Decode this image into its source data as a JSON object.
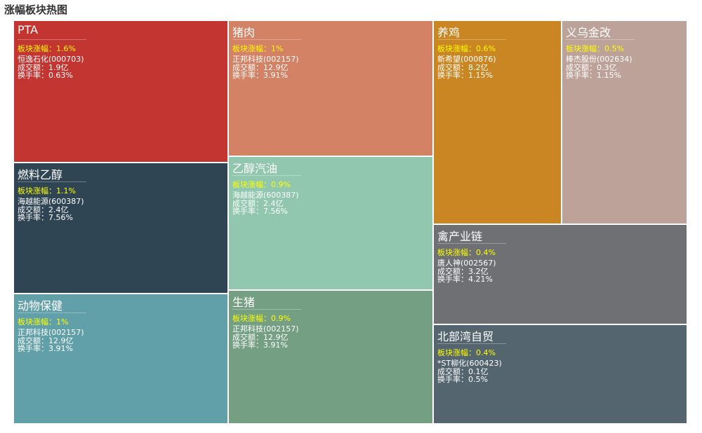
{
  "page_title": "涨幅板块热图",
  "chart_data": {
    "type": "treemap",
    "title": "涨幅板块热图",
    "labels": {
      "change_prefix": "板块涨幅：",
      "amount_prefix": "成交额：",
      "turnover_prefix": "换手率："
    },
    "nodes": [
      {
        "name": "PTA",
        "change": "1.6%",
        "stock": "恒逸石化(000703)",
        "amount": "1.9亿",
        "turnover": "0.63%",
        "color": "#c23531"
      },
      {
        "name": "燃料乙醇",
        "change": "1.1%",
        "stock": "海越能源(600387)",
        "amount": "2.4亿",
        "turnover": "7.56%",
        "color": "#2f4554"
      },
      {
        "name": "动物保健",
        "change": "1%",
        "stock": "正邦科技(002157)",
        "amount": "12.9亿",
        "turnover": "3.91%",
        "color": "#61a0a8"
      },
      {
        "name": "猪肉",
        "change": "1%",
        "stock": "正邦科技(002157)",
        "amount": "12.9亿",
        "turnover": "3.91%",
        "color": "#d48265"
      },
      {
        "name": "乙醇汽油",
        "change": "0.9%",
        "stock": "海越能源(600387)",
        "amount": "2.4亿",
        "turnover": "7.56%",
        "color": "#91c7ae"
      },
      {
        "name": "生猪",
        "change": "0.9%",
        "stock": "正邦科技(002157)",
        "amount": "12.9亿",
        "turnover": "3.91%",
        "color": "#749f83"
      },
      {
        "name": "养鸡",
        "change": "0.6%",
        "stock": "新希望(000876)",
        "amount": "8.2亿",
        "turnover": "1.15%",
        "color": "#ca8622"
      },
      {
        "name": "义乌金改",
        "change": "0.5%",
        "stock": "棒杰股份(002634)",
        "amount": "0.3亿",
        "turnover": "1.15%",
        "color": "#bda29a"
      },
      {
        "name": "禽产业链",
        "change": "0.4%",
        "stock": "唐人神(002567)",
        "amount": "3.2亿",
        "turnover": "4.21%",
        "color": "#6e7074"
      },
      {
        "name": "北部湾自贸",
        "change": "0.4%",
        "stock": "*ST柳化(600423)",
        "amount": "0.1亿",
        "turnover": "0.5%",
        "color": "#546570"
      }
    ]
  }
}
